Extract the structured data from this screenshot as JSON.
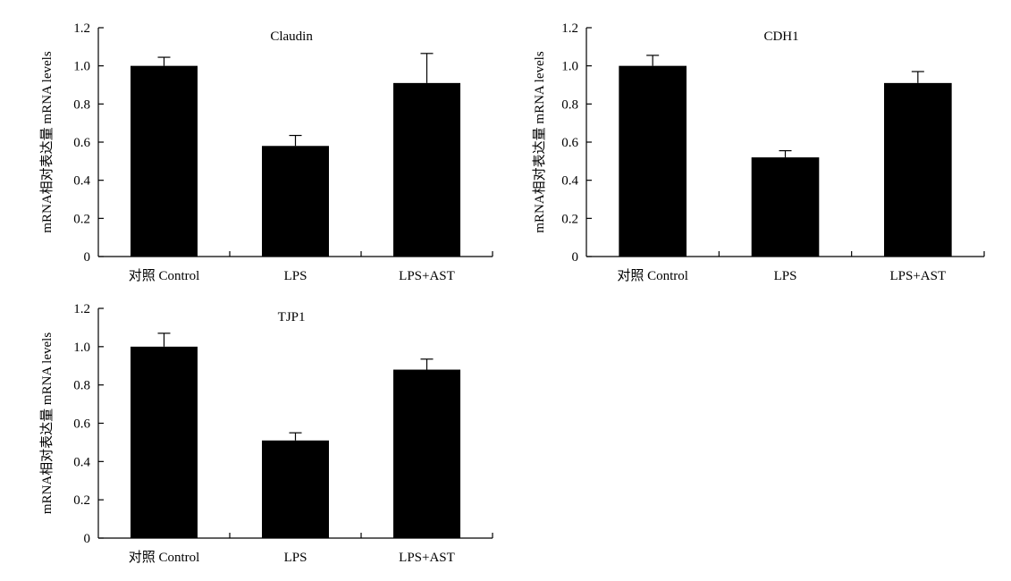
{
  "chart_data": [
    {
      "type": "bar",
      "title": "Claudin",
      "ylabel": "mRNA相对表达量 mRNA levels",
      "categories": [
        "对照 Control",
        "LPS",
        "LPS+AST"
      ],
      "values": [
        1.0,
        0.58,
        0.91
      ],
      "errors": [
        0.045,
        0.055,
        0.155
      ],
      "ylim": [
        0,
        1.2
      ],
      "yticks": [
        "0",
        "0.2",
        "0.4",
        "0.6",
        "0.8",
        "1.0",
        "1.2"
      ],
      "bar_color": "#000000"
    },
    {
      "type": "bar",
      "title": "CDH1",
      "ylabel": "mRNA相对表达量 mRNA levels",
      "categories": [
        "对照 Control",
        "LPS",
        "LPS+AST"
      ],
      "values": [
        1.0,
        0.52,
        0.91
      ],
      "errors": [
        0.055,
        0.035,
        0.06
      ],
      "ylim": [
        0,
        1.2
      ],
      "yticks": [
        "0",
        "0.2",
        "0.4",
        "0.6",
        "0.8",
        "1.0",
        "1.2"
      ],
      "bar_color": "#000000"
    },
    {
      "type": "bar",
      "title": "TJP1",
      "ylabel": "mRNA相对表达量 mRNA levels",
      "categories": [
        "对照 Control",
        "LPS",
        "LPS+AST"
      ],
      "values": [
        1.0,
        0.51,
        0.88
      ],
      "errors": [
        0.07,
        0.04,
        0.055
      ],
      "ylim": [
        0,
        1.2
      ],
      "yticks": [
        "0",
        "0.2",
        "0.4",
        "0.6",
        "0.8",
        "1.0",
        "1.2"
      ],
      "bar_color": "#000000"
    }
  ]
}
